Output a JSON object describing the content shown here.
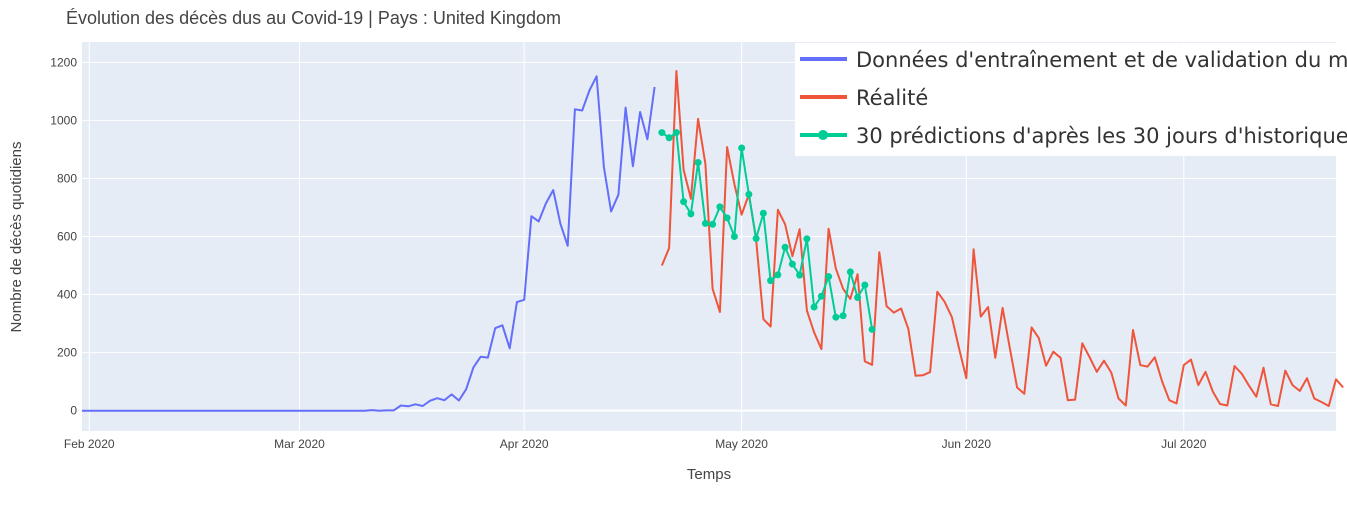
{
  "chart_data": {
    "type": "line",
    "title": "Évolution des décès dus au Covid-19 | Pays : United Kingdom",
    "xlabel": "Temps",
    "ylabel": "Nombre de décès quotidiens",
    "x_range": [
      "2020-01-31",
      "2020-07-22"
    ],
    "ylim": [
      -70,
      1270
    ],
    "yticks": [
      0,
      200,
      400,
      600,
      800,
      1000,
      1200
    ],
    "xticks": [
      {
        "date": "2020-02-01",
        "label": "Feb 2020"
      },
      {
        "date": "2020-03-01",
        "label": "Mar 2020"
      },
      {
        "date": "2020-04-01",
        "label": "Apr 2020"
      },
      {
        "date": "2020-05-01",
        "label": "May 2020"
      },
      {
        "date": "2020-06-01",
        "label": "Jun 2020"
      },
      {
        "date": "2020-07-01",
        "label": "Jul 2020"
      }
    ],
    "grid": true,
    "legend_position": "top-right",
    "background": "#E5ECF6",
    "series": [
      {
        "name": "Données d'entraînement et de validation du modèle",
        "color": "#636EFA",
        "markers": false,
        "start": "2020-01-31",
        "values": [
          0,
          0,
          0,
          0,
          0,
          0,
          0,
          0,
          0,
          0,
          0,
          0,
          0,
          0,
          0,
          0,
          0,
          0,
          0,
          0,
          0,
          0,
          0,
          0,
          0,
          0,
          0,
          0,
          0,
          0,
          0,
          0,
          0,
          0,
          0,
          0,
          0,
          0,
          0,
          0,
          2,
          0,
          1,
          1,
          18,
          15,
          22,
          16,
          34,
          43,
          36,
          56,
          35,
          74,
          149,
          186,
          183,
          284,
          294,
          215,
          374,
          382,
          670,
          652,
          714,
          760,
          644,
          568,
          1038,
          1034,
          1103,
          1152,
          839,
          686,
          744,
          1044,
          842,
          1029,
          935,
          1115
        ]
      },
      {
        "name": "Réalité",
        "color": "#EF553B",
        "markers": false,
        "start": "2020-04-20",
        "values": [
          500,
          560,
          1170,
          830,
          730,
          1005,
          850,
          420,
          340,
          908,
          780,
          675,
          745,
          590,
          315,
          290,
          692,
          642,
          532,
          625,
          345,
          270,
          212,
          627,
          490,
          420,
          385,
          470,
          170,
          158,
          546,
          360,
          338,
          352,
          282,
          120,
          122,
          133,
          410,
          375,
          323,
          214,
          112,
          556,
          324,
          357,
          182,
          354,
          216,
          80,
          58,
          287,
          250,
          155,
          203,
          182,
          36,
          38,
          232,
          185,
          134,
          172,
          131,
          42,
          18,
          278,
          157,
          152,
          184,
          102,
          36,
          25,
          157,
          176,
          88,
          134,
          66,
          23,
          18,
          154,
          127,
          86,
          48,
          148,
          22,
          16,
          138,
          88,
          68,
          112,
          42,
          30,
          16,
          108,
          80
        ]
      },
      {
        "name": "30 prédictions d'après les 30 jours d'historique",
        "color": "#00CC96",
        "markers": true,
        "start": "2020-04-20",
        "values": [
          958,
          940,
          958,
          720,
          678,
          855,
          645,
          642,
          702,
          664,
          600,
          905,
          745,
          593,
          680,
          448,
          468,
          563,
          505,
          467,
          592,
          357,
          394,
          462,
          322,
          327,
          478,
          390,
          433,
          280
        ]
      }
    ]
  }
}
